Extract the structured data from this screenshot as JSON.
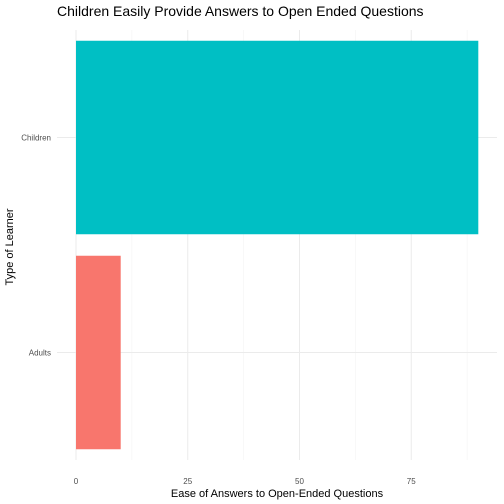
{
  "chart_data": {
    "type": "bar",
    "orientation": "horizontal",
    "title": "Children Easily Provide Answers to Open Ended Questions",
    "xlabel": "Ease of Answers to Open-Ended Questions",
    "ylabel": "Type of Learner",
    "categories": [
      "Adults",
      "Children"
    ],
    "values": [
      10,
      90
    ],
    "colors": [
      "#F8766D",
      "#00BFC4"
    ],
    "xlim": [
      0,
      90
    ],
    "xticks": [
      0,
      25,
      50,
      75
    ],
    "grid": true,
    "legend": "none"
  }
}
